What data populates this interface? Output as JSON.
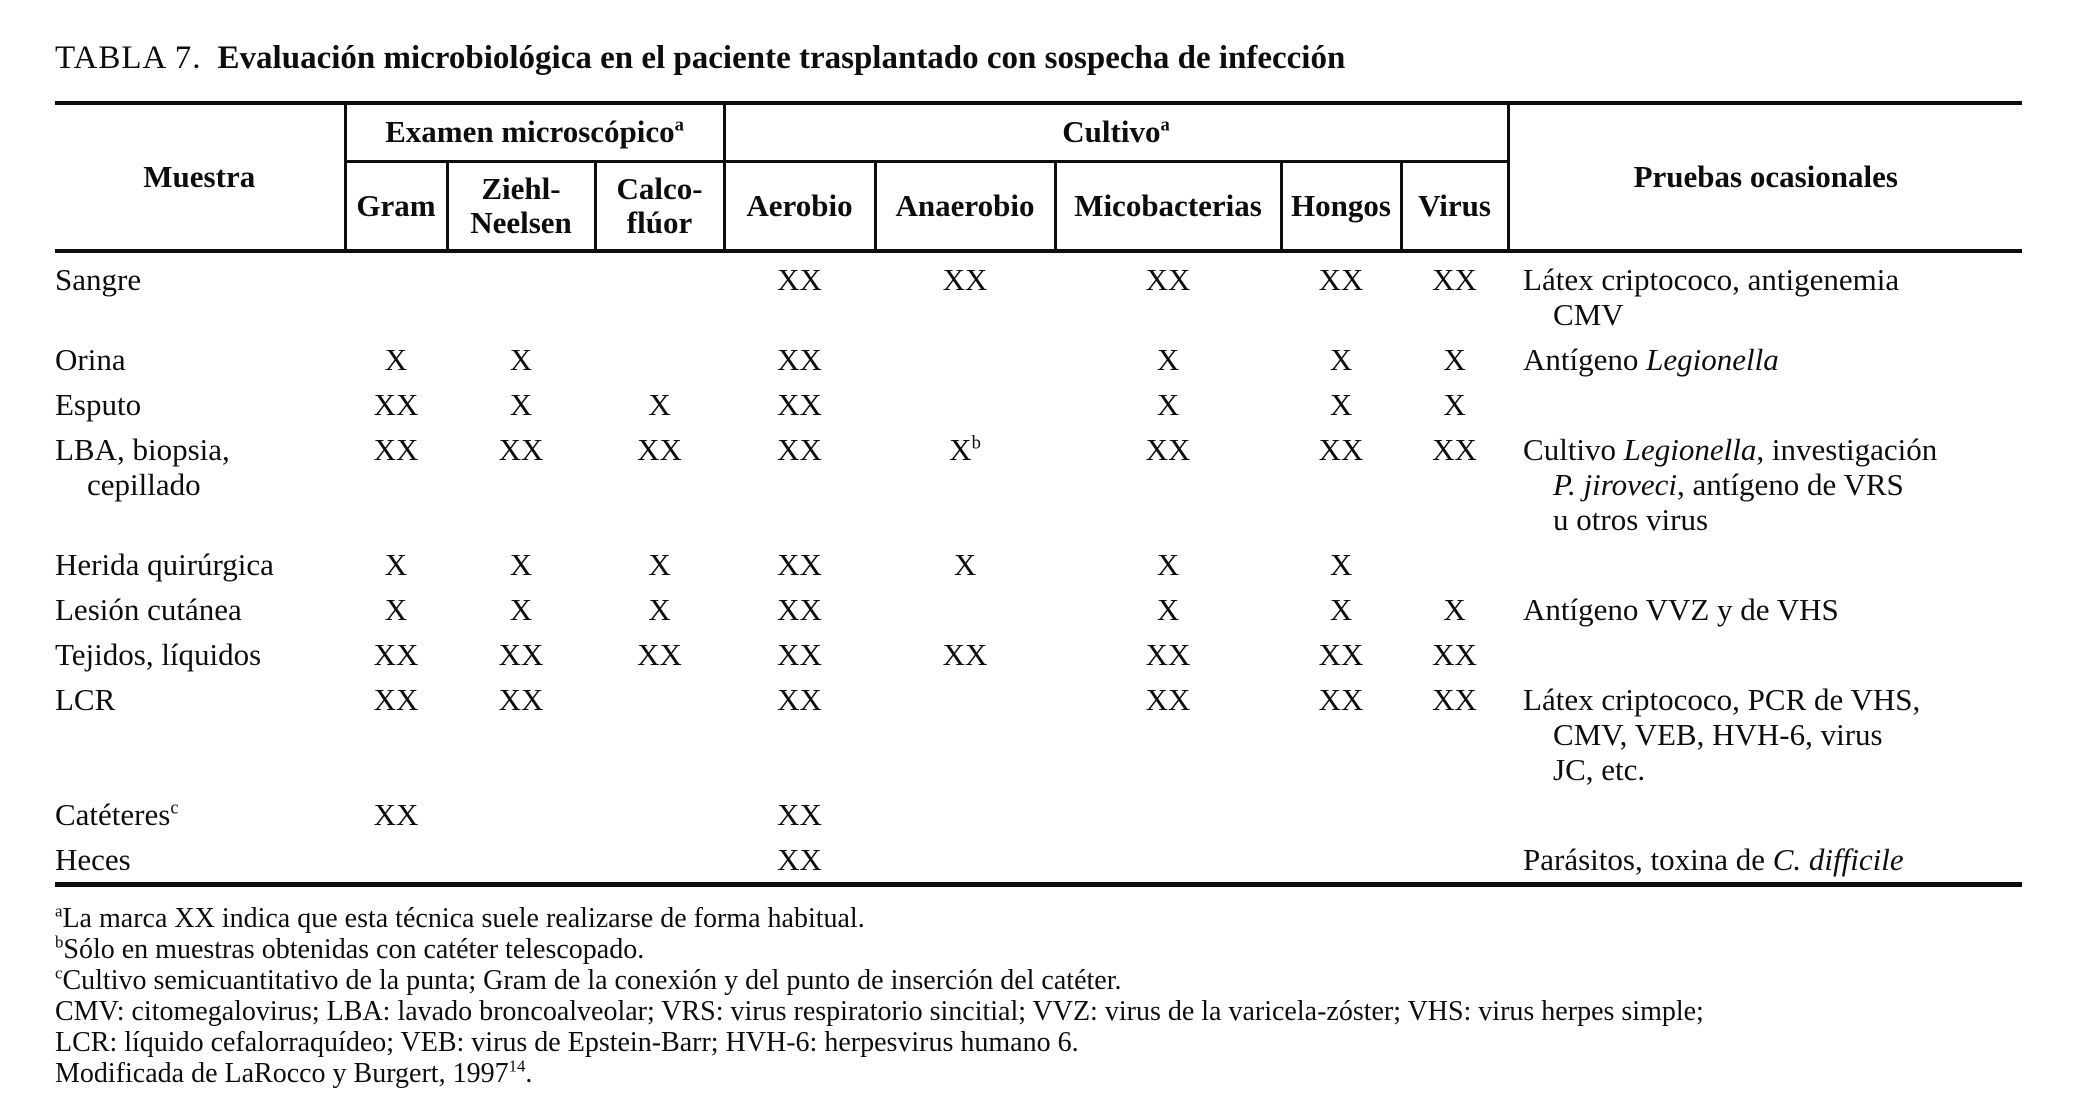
{
  "colors": {
    "text": "#0d0d0d",
    "background": "#ffffff",
    "rule": "#0d0d0d"
  },
  "title": {
    "label": "TABLA 7.",
    "text": "Evaluación microbiológica en el paciente trasplantado con sospecha de infección"
  },
  "table": {
    "header": {
      "muestra": "Muestra",
      "examen_group": [
        {
          "t": "Examen microscópico"
        },
        {
          "t": "a",
          "sup": true
        }
      ],
      "cultivo_group": [
        {
          "t": "Cultivo"
        },
        {
          "t": "a",
          "sup": true
        }
      ],
      "gram": "Gram",
      "ziehl_neelsen": "Ziehl-\nNeelsen",
      "calco_fluor": "Calco-\nflúor",
      "aerobio": "Aerobio",
      "anaerobio": "Anaerobio",
      "micobacterias": "Micobacterias",
      "hongos": "Hongos",
      "virus": "Virus",
      "pruebas": "Pruebas ocasionales"
    },
    "column_keys": [
      "gram",
      "ziehl-neelsen",
      "calco-fluor",
      "aerobio",
      "anaerobio",
      "micobacterias",
      "hongos",
      "virus"
    ],
    "rows": [
      {
        "muestra": [
          {
            "t": "Sangre"
          }
        ],
        "marks": [
          "",
          "",
          "",
          "XX",
          "XX",
          "XX",
          "XX",
          "XX"
        ],
        "pruebas": [
          {
            "t": "Látex criptococo, antigenemia\nCMV"
          }
        ]
      },
      {
        "muestra": [
          {
            "t": "Orina"
          }
        ],
        "marks": [
          "X",
          "X",
          "",
          "XX",
          "",
          "X",
          "X",
          "X"
        ],
        "pruebas": [
          {
            "t": "Antígeno "
          },
          {
            "t": "Legionella",
            "i": true
          }
        ]
      },
      {
        "muestra": [
          {
            "t": "Esputo"
          }
        ],
        "marks": [
          "XX",
          "X",
          "X",
          "XX",
          "",
          "X",
          "X",
          "X"
        ],
        "pruebas": []
      },
      {
        "muestra": [
          {
            "t": "LBA, biopsia,\ncepillado"
          }
        ],
        "marks": [
          "XX",
          "XX",
          "XX",
          "XX",
          "X^b",
          "XX",
          "XX",
          "XX"
        ],
        "pruebas": [
          {
            "t": "Cultivo "
          },
          {
            "t": "Legionella",
            "i": true
          },
          {
            "t": ", investigación\n"
          },
          {
            "t": "P. jiroveci",
            "i": true
          },
          {
            "t": ", antígeno de VRS\nu otros virus"
          }
        ]
      },
      {
        "muestra": [
          {
            "t": "Herida quirúrgica"
          }
        ],
        "marks": [
          "X",
          "X",
          "X",
          "XX",
          "X",
          "X",
          "X",
          ""
        ],
        "pruebas": []
      },
      {
        "muestra": [
          {
            "t": "Lesión cutánea"
          }
        ],
        "marks": [
          "X",
          "X",
          "X",
          "XX",
          "",
          "X",
          "X",
          "X"
        ],
        "pruebas": [
          {
            "t": "Antígeno VVZ y de VHS"
          }
        ]
      },
      {
        "muestra": [
          {
            "t": "Tejidos, líquidos"
          }
        ],
        "marks": [
          "XX",
          "XX",
          "XX",
          "XX",
          "XX",
          "XX",
          "XX",
          "XX"
        ],
        "pruebas": []
      },
      {
        "muestra": [
          {
            "t": "LCR"
          }
        ],
        "marks": [
          "XX",
          "XX",
          "",
          "XX",
          "",
          "XX",
          "XX",
          "XX"
        ],
        "pruebas": [
          {
            "t": "Látex criptococo, PCR de VHS,\nCMV, VEB, HVH-6, virus\nJC, etc."
          }
        ]
      },
      {
        "muestra": [
          {
            "t": "Catéteres"
          },
          {
            "t": "c",
            "sup": true
          }
        ],
        "marks": [
          "XX",
          "",
          "",
          "XX",
          "",
          "",
          "",
          ""
        ],
        "pruebas": []
      },
      {
        "muestra": [
          {
            "t": "Heces"
          }
        ],
        "marks": [
          "",
          "",
          "",
          "XX",
          "",
          "",
          "",
          ""
        ],
        "pruebas": [
          {
            "t": "Parásitos, toxina de "
          },
          {
            "t": "C. difficile",
            "i": true
          }
        ]
      }
    ]
  },
  "footnotes": [
    [
      {
        "t": "a",
        "sup": true
      },
      {
        "t": "La marca XX indica que esta técnica suele realizarse de forma habitual."
      }
    ],
    [
      {
        "t": "b",
        "sup": true
      },
      {
        "t": "Sólo en muestras obtenidas con catéter telescopado."
      }
    ],
    [
      {
        "t": "c",
        "sup": true
      },
      {
        "t": "Cultivo semicuantitativo de la punta; Gram de la conexión y del punto de inserción del catéter."
      }
    ],
    [
      {
        "t": "CMV: citomegalovirus; LBA: lavado broncoalveolar; VRS: virus respiratorio sincitial; VVZ: virus de la varicela-zóster; VHS: virus herpes simple;"
      }
    ],
    [
      {
        "t": "LCR: líquido cefalorraquídeo; VEB: virus de Epstein-Barr; HVH-6: herpesvirus humano 6."
      }
    ],
    [
      {
        "t": "Modificada de LaRocco y Burgert, 1997"
      },
      {
        "t": "14",
        "sup": true
      },
      {
        "t": "."
      }
    ]
  ]
}
